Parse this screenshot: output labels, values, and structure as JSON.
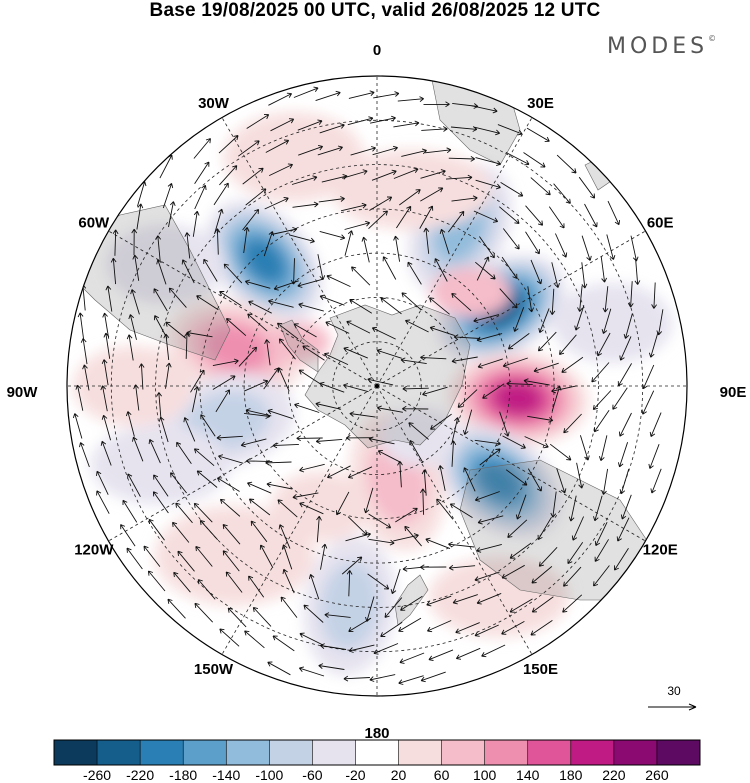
{
  "header": {
    "title": "Base 19/08/2025 00 UTC, valid 26/08/2025 12 UTC",
    "brand": "MODES",
    "brand_mark": "©"
  },
  "map": {
    "projection": "south-polar-stereographic",
    "longitude_labels": [
      "0",
      "30E",
      "60E",
      "90E",
      "120E",
      "150E",
      "180",
      "150W",
      "120W",
      "90W",
      "60W",
      "30W"
    ],
    "reference_vector": {
      "value": "30"
    },
    "anomaly_centers": [
      {
        "name": "neg-30E",
        "lon": 28,
        "colat": 40,
        "value": -130
      },
      {
        "name": "neg-40W",
        "lon": -42,
        "colat": 38,
        "value": -200
      },
      {
        "name": "neg-55E",
        "lon": 58,
        "colat": 33,
        "value": -230
      },
      {
        "name": "pos-95E",
        "lon": 95,
        "colat": 32,
        "value": 200
      },
      {
        "name": "neg-125E",
        "lon": 128,
        "colat": 35,
        "value": -180
      },
      {
        "name": "pos-75W",
        "lon": -75,
        "colat": 33,
        "value": 130
      },
      {
        "name": "pos-165E",
        "lon": 168,
        "colat": 22,
        "value": 80
      },
      {
        "name": "neg-170W",
        "lon": -173,
        "colat": 50,
        "value": -90
      },
      {
        "name": "neg-100W",
        "lon": -103,
        "colat": 35,
        "value": -90
      }
    ]
  },
  "colorbar": {
    "labels": [
      "-260",
      "-220",
      "-180",
      "-140",
      "-100",
      "-60",
      "-20",
      "20",
      "60",
      "100",
      "140",
      "180",
      "220",
      "260"
    ],
    "colors": [
      "#0b3a5c",
      "#155e8b",
      "#2a7fb4",
      "#5c9fcb",
      "#92bcdc",
      "#c4d2e6",
      "#e6e3ef",
      "#ffffff",
      "#f7dede",
      "#f5bcc9",
      "#ef8fb0",
      "#e0559a",
      "#c01b84",
      "#8b0a72",
      "#5c0a62"
    ]
  }
}
